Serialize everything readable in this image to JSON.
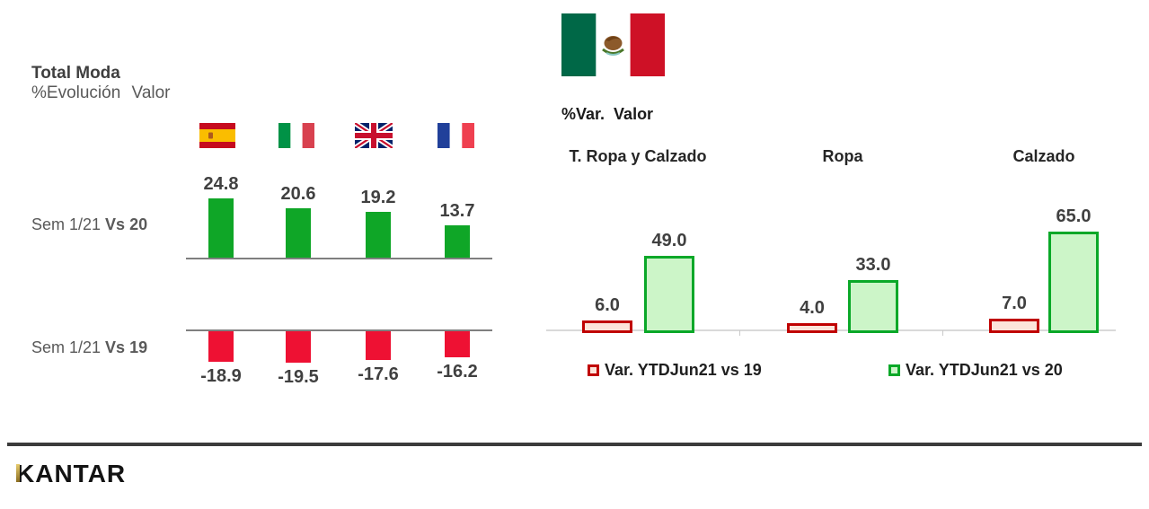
{
  "slide": {
    "title": "Total Moda",
    "subtitle": "%Evolución Valor",
    "footer_logo": "KANTAR"
  },
  "left_chart": {
    "flags": [
      "spain",
      "italy",
      "uk",
      "france"
    ],
    "rows": [
      {
        "label_prefix": "Sem 1/21",
        "label_bold": "Vs 20"
      },
      {
        "label_prefix": "Sem 1/21",
        "label_bold": "Vs 19"
      }
    ]
  },
  "right_chart": {
    "flag": "mexico",
    "header": "%Var. Valor",
    "categories": [
      "T. Ropa y Calzado",
      "Ropa",
      "Calzado"
    ],
    "legend": [
      "Var. YTDJun21 vs 19",
      "Var. YTDJun21 vs 20"
    ]
  },
  "colors": {
    "positive_green": "#0fa627",
    "negative_red": "#ee1133",
    "mx_red_border": "#c00000",
    "mx_red_fill": "#fce4da",
    "mx_green_border": "#0aa828",
    "mx_green_fill": "#ccf5c8",
    "kantar_gold": "#c9a23f"
  },
  "chart_data": [
    {
      "type": "bar",
      "title": "Total Moda",
      "subtitle": "%Evolución Valor",
      "categories": [
        "Spain",
        "Italy",
        "UK",
        "France"
      ],
      "series": [
        {
          "name": "Sem 1/21 Vs 20",
          "values": [
            24.8,
            20.6,
            19.2,
            13.7
          ],
          "color": "#0fa627"
        },
        {
          "name": "Sem 1/21 Vs 19",
          "values": [
            -18.9,
            -19.5,
            -17.6,
            -16.2
          ],
          "color": "#ee1133"
        }
      ],
      "value_labels": "one-decimal, bold, outside bar ends",
      "axes": "zero baseline per row only, no ticks, categories shown as country flags"
    },
    {
      "type": "bar",
      "title": "%Var. Valor",
      "country": "Mexico",
      "categories": [
        "T. Ropa y Calzado",
        "Ropa",
        "Calzado"
      ],
      "series": [
        {
          "name": "Var. YTDJun21 vs 19",
          "values": [
            6.0,
            4.0,
            7.0
          ],
          "fill": "#fce4da",
          "border": "#c00000"
        },
        {
          "name": "Var. YTDJun21 vs 20",
          "values": [
            49.0,
            33.0,
            65.0
          ],
          "fill": "#ccf5c8",
          "border": "#0aa828"
        }
      ],
      "value_labels": "one-decimal, bold, above bars",
      "legend_position": "bottom",
      "axes": "light gray baseline with category divider ticks"
    }
  ]
}
